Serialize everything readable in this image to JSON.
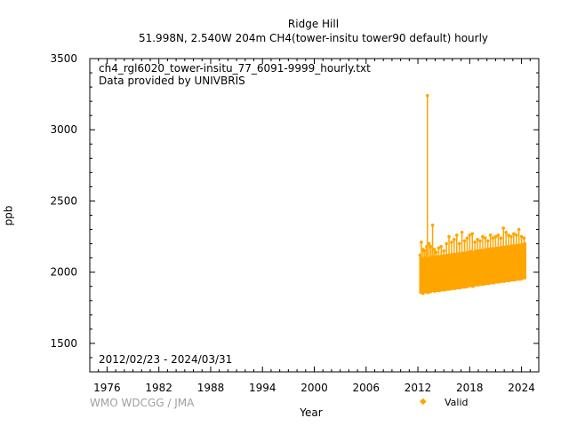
{
  "title": {
    "line1": "Ridge Hill",
    "line2": "51.998N, 2.540W 204m    CH4(tower-insitu tower90 default) hourly"
  },
  "annotations": {
    "filename": "ch4_rgl6020_tower-insitu_77_6091-9999_hourly.txt",
    "provider": "Data provided by UNIVBRIS",
    "date_range": "2012/02/23 - 2024/03/31"
  },
  "credit": "WMO WDCGG / JMA",
  "legend": {
    "label": "Valid",
    "color": "#ffa500"
  },
  "chart_data": {
    "type": "scatter",
    "xlabel": "Year",
    "ylabel": "ppb",
    "xlim": [
      1974,
      2026
    ],
    "ylim": [
      1300,
      3500
    ],
    "xticks": [
      1976,
      1982,
      1988,
      1994,
      2000,
      2006,
      2012,
      2018,
      2024
    ],
    "yticks": [
      1500,
      2000,
      2500,
      3000,
      3500
    ],
    "grid": false,
    "legend_position": "bottom-right",
    "series": [
      {
        "name": "Valid",
        "color": "#ffa500",
        "x": [
          2012.15,
          2012.3,
          2012.5,
          2012.7,
          2012.9,
          2013.0,
          2013.2,
          2013.4,
          2013.6,
          2013.8,
          2014.0,
          2014.3,
          2014.6,
          2014.9,
          2015.2,
          2015.5,
          2015.8,
          2016.1,
          2016.4,
          2016.7,
          2017.0,
          2017.3,
          2017.6,
          2017.9,
          2018.2,
          2018.5,
          2018.8,
          2019.1,
          2019.4,
          2019.7,
          2020.0,
          2020.3,
          2020.6,
          2020.9,
          2021.2,
          2021.5,
          2021.8,
          2022.1,
          2022.4,
          2022.7,
          2023.0,
          2023.3,
          2023.6,
          2023.9,
          2024.2
        ],
        "low": [
          1850,
          1845,
          1840,
          1850,
          1855,
          1845,
          1850,
          1855,
          1860,
          1855,
          1860,
          1860,
          1865,
          1865,
          1870,
          1870,
          1875,
          1875,
          1880,
          1880,
          1885,
          1885,
          1890,
          1895,
          1890,
          1900,
          1900,
          1905,
          1905,
          1910,
          1910,
          1915,
          1915,
          1920,
          1920,
          1925,
          1925,
          1930,
          1930,
          1935,
          1935,
          1940,
          1940,
          1945,
          1950
        ],
        "high": [
          2120,
          2210,
          2160,
          2150,
          2180,
          3240,
          2200,
          2180,
          2330,
          2160,
          2140,
          2170,
          2180,
          2150,
          2200,
          2250,
          2210,
          2230,
          2260,
          2200,
          2280,
          2220,
          2240,
          2260,
          2270,
          2210,
          2230,
          2220,
          2250,
          2240,
          2220,
          2260,
          2240,
          2250,
          2260,
          2240,
          2310,
          2280,
          2260,
          2250,
          2270,
          2260,
          2300,
          2250,
          2240
        ]
      }
    ]
  }
}
